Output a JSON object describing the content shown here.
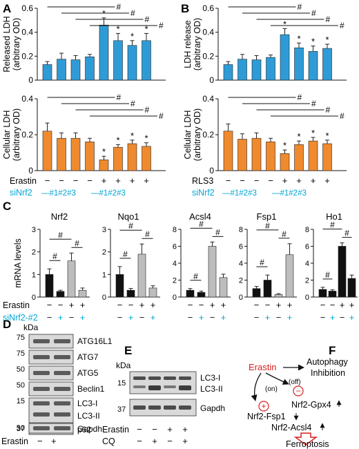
{
  "panel_labels": {
    "A": "A",
    "B": "B",
    "C": "C",
    "D": "D",
    "E": "E",
    "F": "F"
  },
  "colors": {
    "blue": "#2f9bd6",
    "orange": "#f08a2e",
    "black": "#111111",
    "gray": "#bdbdbd",
    "cyan": "#00a6d6",
    "red": "#d62020"
  },
  "chart_data": [
    {
      "panel": "A",
      "type": "bar",
      "ylabel": "Released LDH (arbitrary OD)",
      "ylim": [
        0,
        0.6
      ],
      "yticks": [
        "0",
        "0.2",
        "0.4",
        "0.6"
      ],
      "ytick_vals": [
        0,
        0.2,
        0.4,
        0.6
      ],
      "values": [
        0.13,
        0.175,
        0.17,
        0.195,
        0.46,
        0.33,
        0.29,
        0.33
      ],
      "errors": [
        0.025,
        0.05,
        0.035,
        0.02,
        0.06,
        0.06,
        0.04,
        0.06
      ],
      "stars": [
        false,
        false,
        false,
        false,
        true,
        true,
        true,
        true
      ],
      "hash_brackets": 4,
      "hash": "#",
      "star": "*"
    },
    {
      "panel": "A",
      "type": "bar",
      "ylabel": "Cellular LDH (arbitrary OD)",
      "ylim": [
        0,
        0.4
      ],
      "yticks": [
        "0",
        "0.2",
        "0.4"
      ],
      "ytick_vals": [
        0,
        0.2,
        0.4
      ],
      "values": [
        0.22,
        0.18,
        0.18,
        0.16,
        0.06,
        0.13,
        0.15,
        0.135
      ],
      "errors": [
        0.045,
        0.03,
        0.03,
        0.02,
        0.02,
        0.015,
        0.02,
        0.02
      ],
      "stars": [
        false,
        false,
        false,
        false,
        true,
        true,
        true,
        true
      ],
      "hash_brackets": 4,
      "hash": "#",
      "star": "*"
    },
    {
      "panel": "B",
      "type": "bar",
      "ylabel": "LDH release (arbitrary OD)",
      "ylim": [
        0,
        0.6
      ],
      "yticks": [
        "0",
        "0.2",
        "0.4",
        "0.6"
      ],
      "ytick_vals": [
        0,
        0.2,
        0.4,
        0.6
      ],
      "values": [
        0.13,
        0.175,
        0.17,
        0.19,
        0.38,
        0.27,
        0.24,
        0.265
      ],
      "errors": [
        0.025,
        0.04,
        0.035,
        0.02,
        0.05,
        0.04,
        0.045,
        0.035
      ],
      "stars": [
        false,
        false,
        false,
        false,
        true,
        true,
        true,
        true
      ],
      "hash_brackets": 4,
      "hash": "#",
      "star": "*"
    },
    {
      "panel": "B",
      "type": "bar",
      "ylabel": "Cellular LDH (arbitrary OD)",
      "ylim": [
        0,
        0.4
      ],
      "yticks": [
        "0",
        "0.2",
        "0.4"
      ],
      "ytick_vals": [
        0,
        0.2,
        0.4
      ],
      "values": [
        0.22,
        0.175,
        0.18,
        0.16,
        0.095,
        0.145,
        0.165,
        0.15
      ],
      "errors": [
        0.04,
        0.03,
        0.03,
        0.02,
        0.02,
        0.02,
        0.02,
        0.02
      ],
      "stars": [
        false,
        false,
        false,
        false,
        true,
        true,
        true,
        true
      ],
      "hash_brackets": 4,
      "hash": "#",
      "star": "*"
    },
    {
      "panel": "C",
      "type": "bar",
      "title": "Nrf2",
      "ylabel": "mRNA levels",
      "ylim": [
        0,
        3
      ],
      "yticks": [
        "0",
        "1",
        "2",
        "3"
      ],
      "ytick_vals": [
        0,
        1,
        2,
        3
      ],
      "values": [
        1.0,
        0.25,
        1.6,
        0.3
      ],
      "errors": [
        0.25,
        0.05,
        0.35,
        0.1
      ],
      "bar_colors": [
        "#111111",
        "#111111",
        "#bdbdbd",
        "#bdbdbd"
      ]
    },
    {
      "panel": "C",
      "type": "bar",
      "title": "Nqo1",
      "ylim": [
        0,
        3
      ],
      "yticks": [
        "0",
        "1",
        "2",
        "3"
      ],
      "ytick_vals": [
        0,
        1,
        2,
        3
      ],
      "values": [
        1.0,
        0.3,
        1.9,
        0.4
      ],
      "errors": [
        0.35,
        0.08,
        0.45,
        0.1
      ],
      "bar_colors": [
        "#111111",
        "#111111",
        "#bdbdbd",
        "#bdbdbd"
      ]
    },
    {
      "panel": "C",
      "type": "bar",
      "title": "Acsl4",
      "ylim": [
        0,
        8
      ],
      "yticks": [
        "0",
        "2",
        "4",
        "6",
        "8"
      ],
      "ytick_vals": [
        0,
        2,
        4,
        6,
        8
      ],
      "values": [
        0.8,
        0.55,
        6.0,
        2.3
      ],
      "errors": [
        0.2,
        0.15,
        0.5,
        0.4
      ],
      "bar_colors": [
        "#111111",
        "#111111",
        "#bdbdbd",
        "#bdbdbd"
      ]
    },
    {
      "panel": "C",
      "type": "bar",
      "title": "Fsp1",
      "ylim": [
        0,
        8
      ],
      "yticks": [
        "0",
        "2",
        "4",
        "6",
        "8"
      ],
      "ytick_vals": [
        0,
        2,
        4,
        6,
        8
      ],
      "values": [
        1.0,
        2.0,
        0.3,
        5.0
      ],
      "errors": [
        0.25,
        0.6,
        0.1,
        1.3
      ],
      "bar_colors": [
        "#111111",
        "#111111",
        "#bdbdbd",
        "#bdbdbd"
      ]
    },
    {
      "panel": "C",
      "type": "bar",
      "title": "Ho1",
      "ylim": [
        0,
        8
      ],
      "yticks": [
        "0",
        "2",
        "4",
        "6",
        "8"
      ],
      "ytick_vals": [
        0,
        2,
        4,
        6,
        8
      ],
      "values": [
        0.9,
        0.7,
        6.0,
        2.2
      ],
      "errors": [
        0.25,
        0.15,
        0.4,
        0.4
      ],
      "bar_colors": [
        "#111111",
        "#111111",
        "#111111",
        "#111111"
      ]
    }
  ],
  "labels_ab": {
    "erastin": "Erastin",
    "rls3": "RLS3",
    "sinrf2": "siNrf2",
    "treatment_signs": [
      "−",
      "−",
      "−",
      "−",
      "+",
      "+",
      "+",
      "+"
    ],
    "sirna_left": "—#1#2#3",
    "sirna_right": "—#1#2#3"
  },
  "labels_c": {
    "erastin": "Erastin",
    "sinrf2": "siNrf2-#2",
    "erastin_signs": [
      "−",
      "−",
      "+",
      "+"
    ],
    "sirna_signs": [
      "−",
      "+",
      "−",
      "+"
    ]
  },
  "panel_d": {
    "kda": "kDa",
    "markers": [
      "75",
      "75",
      "50",
      "50",
      "15",
      "50",
      "37"
    ],
    "bands": [
      "ATG16L1",
      "ATG7",
      "ATG5",
      "Beclin1",
      "LC3-I",
      "LC3-II",
      "p62",
      "Gapdh"
    ],
    "erastin": "Erastin",
    "signs": [
      "−",
      "+"
    ]
  },
  "panel_e": {
    "kda": "kDa",
    "markers": [
      "15",
      "37"
    ],
    "bands": [
      "LC3-I",
      "LC3-II",
      "Gapdh"
    ],
    "erastin": "Erastin",
    "erastin_signs": [
      "−",
      "−",
      "+",
      "+"
    ],
    "cq": "CQ",
    "cq_signs": [
      "−",
      "+",
      "−",
      "+"
    ]
  },
  "panel_f": {
    "erastin": "Erastin",
    "autophagy": "Autophagy",
    "inhibition": "Inhibition",
    "on": "(on)",
    "off": "(off)",
    "plus": "+",
    "minus": "−",
    "gpx4": "Nrf2-Gpx4",
    "fsp1": "Nrf2-Fsp1",
    "acsl4": "Nrf2-Acsl4",
    "ferroptosis": "Ferroptosis"
  }
}
